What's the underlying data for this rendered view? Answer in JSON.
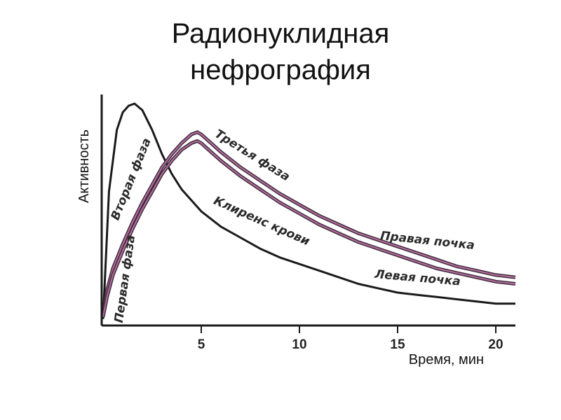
{
  "title": {
    "line1": "Радионуклидная",
    "line2": "нефрография"
  },
  "chart_data": {
    "type": "line",
    "ylabel": "Активность",
    "xlabel": "Время, мин",
    "xlim": [
      0,
      21
    ],
    "ylim": [
      0,
      100
    ],
    "x_ticks": [
      5,
      10,
      15,
      20
    ],
    "grid": false,
    "colors": {
      "blood": "#1a1a1a",
      "kidney": "#b06a9c",
      "axis": "#1a1a1a"
    },
    "series": [
      {
        "name": "Клиренс крови",
        "points": [
          [
            0.0,
            2
          ],
          [
            0.3,
            60
          ],
          [
            0.7,
            88
          ],
          [
            1.0,
            96
          ],
          [
            1.3,
            99
          ],
          [
            1.6,
            100
          ],
          [
            2.0,
            97
          ],
          [
            2.5,
            88
          ],
          [
            3.0,
            77
          ],
          [
            3.5,
            68
          ],
          [
            4.0,
            61
          ],
          [
            5.0,
            51
          ],
          [
            6.0,
            44
          ],
          [
            7.0,
            39
          ],
          [
            8.0,
            34
          ],
          [
            9.0,
            30
          ],
          [
            10.0,
            27
          ],
          [
            11.0,
            24
          ],
          [
            12.0,
            21
          ],
          [
            13.0,
            18
          ],
          [
            14.0,
            16
          ],
          [
            15.0,
            14
          ],
          [
            16.0,
            13
          ],
          [
            17.0,
            12
          ],
          [
            18.0,
            11
          ],
          [
            19.0,
            10
          ],
          [
            20.0,
            9
          ],
          [
            21.0,
            9
          ]
        ]
      },
      {
        "name": "Правая почка",
        "points": [
          [
            0.0,
            5
          ],
          [
            0.2,
            15
          ],
          [
            0.5,
            25
          ],
          [
            1.0,
            36
          ],
          [
            1.5,
            46
          ],
          [
            2.0,
            55
          ],
          [
            2.5,
            63
          ],
          [
            3.0,
            71
          ],
          [
            3.5,
            77
          ],
          [
            4.0,
            82
          ],
          [
            4.5,
            86
          ],
          [
            4.8,
            87
          ],
          [
            5.0,
            86
          ],
          [
            5.5,
            82
          ],
          [
            6.0,
            78
          ],
          [
            7.0,
            71
          ],
          [
            8.0,
            65
          ],
          [
            9.0,
            59
          ],
          [
            10.0,
            54
          ],
          [
            11.0,
            49
          ],
          [
            12.0,
            45
          ],
          [
            13.0,
            41
          ],
          [
            14.0,
            38
          ],
          [
            15.0,
            35
          ],
          [
            16.0,
            32
          ],
          [
            17.0,
            29
          ],
          [
            18.0,
            26
          ],
          [
            19.0,
            24
          ],
          [
            20.0,
            22
          ],
          [
            21.0,
            21
          ]
        ]
      },
      {
        "name": "Левая почка",
        "points": [
          [
            0.0,
            3
          ],
          [
            0.2,
            12
          ],
          [
            0.5,
            22
          ],
          [
            1.0,
            33
          ],
          [
            1.5,
            43
          ],
          [
            2.0,
            52
          ],
          [
            2.5,
            60
          ],
          [
            3.0,
            68
          ],
          [
            3.5,
            74
          ],
          [
            4.0,
            79
          ],
          [
            4.5,
            82
          ],
          [
            4.8,
            83
          ],
          [
            5.0,
            82
          ],
          [
            5.5,
            78
          ],
          [
            6.0,
            74
          ],
          [
            7.0,
            67
          ],
          [
            8.0,
            61
          ],
          [
            9.0,
            55
          ],
          [
            10.0,
            50
          ],
          [
            11.0,
            45
          ],
          [
            12.0,
            41
          ],
          [
            13.0,
            37
          ],
          [
            14.0,
            34
          ],
          [
            15.0,
            31
          ],
          [
            16.0,
            28
          ],
          [
            17.0,
            25
          ],
          [
            18.0,
            23
          ],
          [
            19.0,
            21
          ],
          [
            20.0,
            19
          ],
          [
            21.0,
            18
          ]
        ]
      }
    ],
    "annotations": [
      {
        "text": "Первая фаза",
        "x": 1.3,
        "y": 20
      },
      {
        "text": "Вторая фаза",
        "x": 1.6,
        "y": 65
      },
      {
        "text": "Третья фаза",
        "x": 7.5,
        "y": 75
      },
      {
        "text": "Клиренс крови",
        "x": 8.0,
        "y": 45
      },
      {
        "text": "Правая почка",
        "x": 16.5,
        "y": 36
      },
      {
        "text": "Левая почка",
        "x": 16.0,
        "y": 19
      }
    ]
  }
}
